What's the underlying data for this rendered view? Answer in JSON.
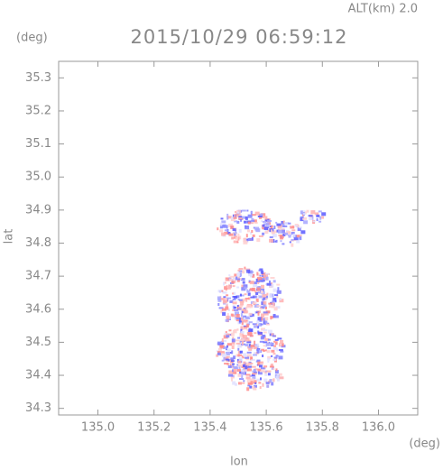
{
  "chart_data": {
    "type": "scatter",
    "title": "2015/10/29 06:59:12",
    "altitude_label": "ALT(km) 2.0",
    "y_unit": "(deg)",
    "x_unit": "(deg)",
    "x_label": "lon",
    "y_label": "lat",
    "xlim": [
      134.86,
      136.14
    ],
    "xticks": [
      {
        "value": 135,
        "label": "135.0"
      },
      135.2,
      135.4,
      135.6,
      135.8,
      {
        "value": 136,
        "label": "136.0"
      }
    ],
    "ylim": [
      34.28,
      35.35
    ],
    "yticks": [
      34.3,
      34.4,
      34.5,
      34.6,
      34.7,
      34.8,
      34.9,
      {
        "value": 35,
        "label": "35.0"
      },
      35.1,
      35.2,
      35.3
    ]
  }
}
